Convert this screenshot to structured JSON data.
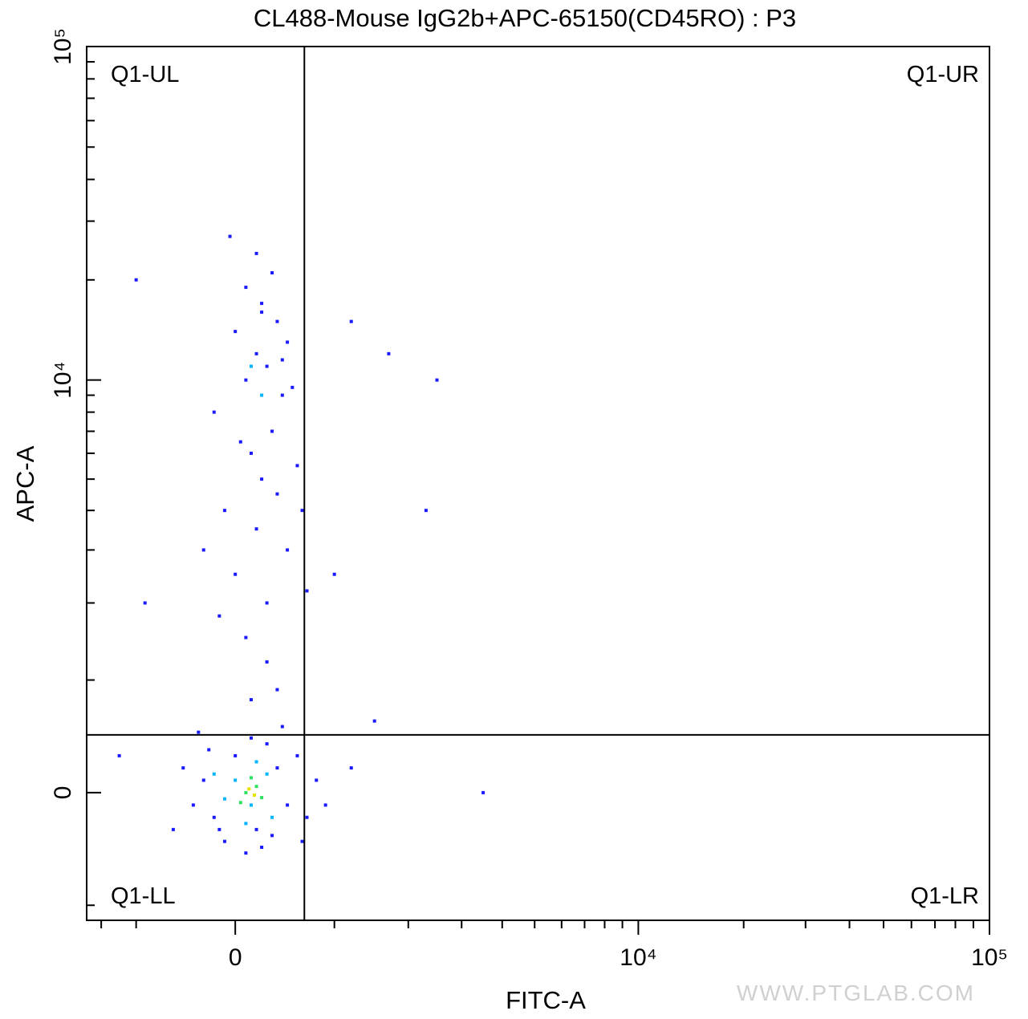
{
  "chart_data": {
    "type": "scatter",
    "title": "CL488-Mouse IgG2b+APC-65150(CD45RO) : P3",
    "x_label": "FITC-A",
    "y_label": "APC-A",
    "scale": "biexponential",
    "x_width": 1439,
    "y_width": 1167,
    "xlim": [
      -1630,
      100000
    ],
    "ylim": [
      -1165,
      100000
    ],
    "xticks": [
      0,
      {
        "value": 10000,
        "label": "10⁴"
      },
      {
        "value": 100000,
        "label": "10⁵"
      }
    ],
    "yticks": [
      0,
      {
        "value": 10000,
        "label": "10⁴"
      },
      {
        "value": 100000,
        "label": "10⁵"
      }
    ],
    "xminor": [
      -1430,
      -1000,
      1000,
      2000,
      3000,
      4000,
      5000,
      6000,
      7000,
      8000,
      9000,
      20000,
      30000,
      40000,
      50000,
      60000,
      70000,
      80000,
      90000
    ],
    "yminor": [
      -1000,
      1000,
      2000,
      3000,
      4000,
      5000,
      6000,
      7000,
      8000,
      9000,
      20000,
      30000,
      40000,
      50000,
      60000,
      70000,
      80000,
      90000
    ],
    "gates": {
      "x": 673,
      "y": 477
    },
    "quadrants": {
      "ul": "Q1-UL",
      "ur": "Q1-UR",
      "ll": "Q1-LL",
      "lr": "Q1-LR"
    },
    "watermark": "WWW.PTGLAB.COM",
    "density_levels": [
      {
        "color": "#1a1aff",
        "x": [
          -300,
          -200,
          0,
          200,
          400,
          500,
          -100,
          300,
          600,
          -400,
          100,
          700,
          -250,
          250,
          800,
          -500,
          150,
          350,
          -150,
          650,
          900,
          1200,
          -600,
          450,
          -350,
          100,
          300,
          0,
          500,
          200,
          -100,
          400,
          250,
          600,
          150,
          350,
          -200,
          450,
          100,
          300,
          200,
          500,
          0,
          400,
          250,
          100,
          350,
          200,
          -50,
          550,
          50,
          650,
          -300,
          300,
          700,
          150,
          400,
          -150,
          250,
          450,
          -1000,
          1700,
          1200,
          2500,
          -1200,
          3500,
          2300,
          -900,
          1000,
          1500
        ],
        "y": [
          100,
          -200,
          300,
          -300,
          200,
          -100,
          -400,
          400,
          300,
          -100,
          -500,
          -200,
          350,
          -450,
          100,
          200,
          450,
          -350,
          -300,
          -400,
          -100,
          200,
          -300,
          550,
          500,
          1500,
          2000,
          2500,
          3000,
          3500,
          4000,
          4500,
          5000,
          5500,
          6000,
          7000,
          8000,
          9000,
          10000,
          11000,
          12000,
          13000,
          14000,
          15000,
          17000,
          19000,
          21000,
          24000,
          27000,
          9500,
          6500,
          4000,
          3000,
          1200,
          2200,
          800,
          900,
          1800,
          16000,
          11500,
          20000,
          12000,
          15000,
          10000,
          300,
          0,
          4000,
          2000,
          2500,
          600
        ]
      },
      {
        "color": "#00b4ff",
        "x": [
          0,
          150,
          300,
          -100,
          200,
          350,
          100,
          -200,
          150,
          250
        ],
        "y": [
          100,
          -100,
          150,
          -50,
          250,
          -200,
          -250,
          150,
          11000,
          9000
        ]
      },
      {
        "color": "#30e060",
        "x": [
          100,
          200,
          50,
          250,
          150
        ],
        "y": [
          0,
          50,
          -80,
          -40,
          120
        ]
      },
      {
        "color": "#e8e000",
        "x": [
          130,
          180
        ],
        "y": [
          30,
          -20
        ]
      }
    ]
  }
}
